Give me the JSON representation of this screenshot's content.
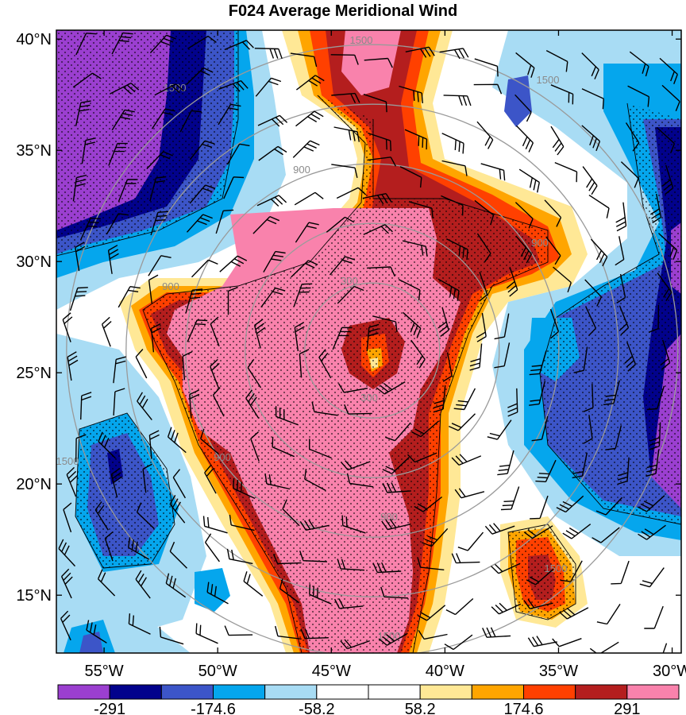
{
  "chart_data": {
    "type": "heatmap",
    "title": "F024 Average Meridional Wind",
    "x_ticks": [
      "55°W",
      "50°W",
      "45°W",
      "40°W",
      "35°W",
      "30°W"
    ],
    "x_tick_values": [
      -55,
      -50,
      -45,
      -40,
      -35,
      -30
    ],
    "y_ticks": [
      "40°N",
      "35°N",
      "30°N",
      "25°N",
      "20°N",
      "15°N"
    ],
    "y_tick_values": [
      40,
      35,
      30,
      25,
      20,
      15
    ],
    "xlim": [
      -57.1,
      -29.6
    ],
    "ylim": [
      12.4,
      40.4
    ],
    "colorbar": {
      "labels": [
        "-291",
        "-174.6",
        "-58.2",
        "58.2",
        "174.6",
        "291"
      ],
      "levels": [
        -349.2,
        -291,
        -232.8,
        -174.6,
        -116.4,
        -58.2,
        0,
        58.2,
        116.4,
        174.6,
        232.8,
        291
      ],
      "colors": [
        "#9b3fd0",
        "#02028c",
        "#3c55c8",
        "#05a6ed",
        "#a8dcf4",
        "#ffffff",
        "#ffffff",
        "#ffe896",
        "#ffa500",
        "#ff4000",
        "#b41e1e",
        "#f982ac"
      ]
    },
    "contour_labels": [
      "1500",
      "1500",
      "1500",
      "900",
      "900",
      "900",
      "300",
      "300",
      "900",
      "900",
      "1500",
      "1500",
      "1500"
    ],
    "center": {
      "lon": -43.2,
      "lat": 26.0
    },
    "rings": [
      300,
      900,
      1500
    ]
  }
}
